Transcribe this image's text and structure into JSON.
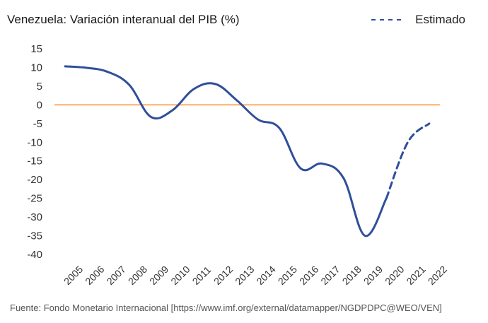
{
  "chart_data": {
    "type": "line",
    "title": "Venezuela: Variación interanual del PIB (%)",
    "xlabel": "",
    "ylabel": "",
    "ylim": [
      -40,
      15
    ],
    "yticks": [
      15,
      10,
      5,
      0,
      -5,
      -10,
      -15,
      -20,
      -25,
      -30,
      -35,
      -40
    ],
    "categories": [
      "2005",
      "2006",
      "2007",
      "2008",
      "2009",
      "2010",
      "2011",
      "2012",
      "2013",
      "2014",
      "2015",
      "2016",
      "2017",
      "2018",
      "2019",
      "2020",
      "2021",
      "2022"
    ],
    "series": [
      {
        "name": "",
        "style": "solid",
        "color": "#2f4f9a",
        "values": [
          10.3,
          9.9,
          8.8,
          5.3,
          -3.2,
          -1.5,
          4.2,
          5.6,
          1.3,
          -3.9,
          -6.2,
          -17.0,
          -15.7,
          -19.6,
          -35.0,
          -25.0,
          null,
          null
        ]
      },
      {
        "name": "Estimado",
        "style": "dashed",
        "color": "#2f4f9a",
        "values": [
          null,
          null,
          null,
          null,
          null,
          null,
          null,
          null,
          null,
          null,
          null,
          null,
          null,
          null,
          null,
          -25.0,
          -10.0,
          -5.0
        ]
      }
    ],
    "reference_line": {
      "y": 0,
      "color": "#ff8c28"
    },
    "legend": {
      "position": "top-right",
      "label": "Estimado"
    },
    "source": "Fuente: Fondo Monetario Internacional [https://www.imf.org/external/datamapper/NGDPDPC@WEO/VEN]"
  }
}
